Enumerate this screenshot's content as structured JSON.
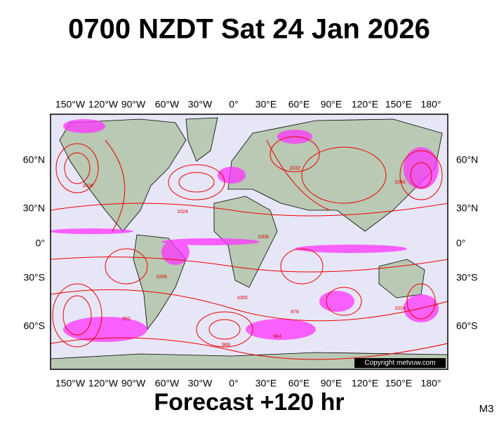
{
  "title": "0700 NZDT Sat 24 Jan 2026",
  "map": {
    "lon_ticks": [
      "150°W",
      "120°W",
      "90°W",
      "60°W",
      "30°W",
      "0°",
      "30°E",
      "60°E",
      "90°E",
      "120°E",
      "150°E",
      "180°"
    ],
    "lat_ticks": [
      "60°N",
      "30°N",
      "0°",
      "30°S",
      "60°S"
    ],
    "isobar_labels": [
      "1016",
      "1024",
      "1008",
      "1000",
      "992",
      "984",
      "976",
      "968",
      "1032",
      "1040",
      "1016",
      "1008"
    ],
    "copyright": "Copyright metvuw.com"
  },
  "footer": {
    "forecast": "Forecast +120 hr",
    "model": "M3"
  }
}
